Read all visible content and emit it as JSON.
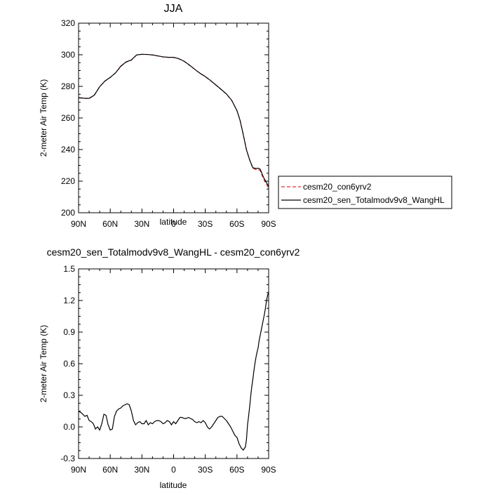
{
  "chart_data": [
    {
      "type": "line",
      "title": "JJA",
      "xlabel": "latitude",
      "ylabel": "2-meter Air Temp (K)",
      "xlim": [
        90,
        -90
      ],
      "ylim": [
        200,
        320
      ],
      "xticks": [
        90,
        60,
        30,
        0,
        -30,
        -60,
        -90
      ],
      "xtick_labels": [
        "90N",
        "60N",
        "30N",
        "0",
        "30S",
        "60S",
        "90S"
      ],
      "yticks": [
        200,
        220,
        240,
        260,
        280,
        300,
        320
      ],
      "ytick_labels": [
        "200",
        "220",
        "240",
        "260",
        "280",
        "300",
        "320"
      ],
      "legend_position": "right",
      "series": [
        {
          "name": "cesm20_con6yrv2",
          "color": "#e03030",
          "dash": true,
          "x": [
            90,
            85,
            80,
            75,
            70,
            65,
            60,
            55,
            50,
            45,
            40,
            35,
            30,
            25,
            20,
            15,
            10,
            5,
            0,
            -5,
            -10,
            -15,
            -20,
            -25,
            -30,
            -35,
            -40,
            -45,
            -50,
            -55,
            -60,
            -63,
            -66,
            -69,
            -72,
            -75,
            -78,
            -80,
            -82,
            -85,
            -88,
            -90
          ],
          "y": [
            272.7,
            272.4,
            272.3,
            274.5,
            279.8,
            283.3,
            285.6,
            288.5,
            292.6,
            295.3,
            296.6,
            299.9,
            300.3,
            300.2,
            299.9,
            299.2,
            298.6,
            298.4,
            298.3,
            297.4,
            295.8,
            293.4,
            290.8,
            288.3,
            286.1,
            283.6,
            280.9,
            278.0,
            275.1,
            271.1,
            264.7,
            258.4,
            249.5,
            240.0,
            233.5,
            228.1,
            227.3,
            227.5,
            226.6,
            221.5,
            218.0,
            215.4
          ]
        },
        {
          "name": "cesm20_sen_Totalmodv9v8_WangHL",
          "color": "#000000",
          "dash": false,
          "x": [
            90,
            85,
            80,
            75,
            70,
            65,
            60,
            55,
            50,
            45,
            40,
            35,
            30,
            25,
            20,
            15,
            10,
            5,
            0,
            -5,
            -10,
            -15,
            -20,
            -25,
            -30,
            -35,
            -40,
            -45,
            -50,
            -55,
            -60,
            -63,
            -66,
            -69,
            -72,
            -75,
            -78,
            -80,
            -82,
            -85,
            -88,
            -90
          ],
          "y": [
            272.9,
            272.5,
            272.4,
            274.5,
            279.8,
            283.4,
            285.7,
            288.5,
            292.8,
            295.5,
            296.7,
            299.9,
            300.3,
            300.2,
            299.9,
            299.3,
            298.7,
            298.4,
            298.4,
            297.5,
            295.9,
            293.5,
            290.8,
            288.3,
            286.2,
            283.7,
            280.9,
            278.1,
            275.2,
            271.2,
            264.6,
            258.3,
            249.3,
            239.8,
            233.5,
            228.5,
            228.0,
            228.2,
            227.6,
            222.6,
            219.0,
            216.7
          ]
        }
      ]
    },
    {
      "type": "line",
      "title": "cesm20_sen_Totalmodv9v8_WangHL - cesm20_con6yrv2",
      "xlabel": "latitude",
      "ylabel": "2-meter Air Temp (K)",
      "xlim": [
        90,
        -90
      ],
      "ylim": [
        -0.3,
        1.5
      ],
      "xticks": [
        90,
        60,
        30,
        0,
        -30,
        -60,
        -90
      ],
      "xtick_labels": [
        "90N",
        "60N",
        "30N",
        "0",
        "30S",
        "60S",
        "90S"
      ],
      "yticks": [
        -0.3,
        0.0,
        0.3,
        0.6,
        0.9,
        1.2,
        1.5
      ],
      "ytick_labels": [
        "-0.3",
        "0.0",
        "0.3",
        "0.6",
        "0.9",
        "1.2",
        "1.5"
      ],
      "series": [
        {
          "color": "#000000",
          "dash": false,
          "x": [
            90,
            87,
            84,
            82,
            80,
            78,
            76,
            74,
            72,
            70,
            68,
            66,
            64,
            62,
            60,
            58,
            56,
            54,
            52,
            50,
            48,
            46,
            44,
            42,
            40,
            38,
            36,
            34,
            32,
            30,
            28,
            26,
            24,
            22,
            20,
            18,
            16,
            14,
            12,
            10,
            8,
            6,
            4,
            2,
            0,
            -2,
            -4,
            -6,
            -8,
            -10,
            -12,
            -14,
            -16,
            -18,
            -20,
            -22,
            -24,
            -26,
            -28,
            -30,
            -32,
            -34,
            -36,
            -38,
            -40,
            -42,
            -44,
            -46,
            -48,
            -50,
            -52,
            -54,
            -56,
            -58,
            -60,
            -62,
            -64,
            -66,
            -68,
            -69,
            -70,
            -71,
            -72,
            -73,
            -74,
            -75,
            -76,
            -77,
            -78,
            -79,
            -80,
            -81,
            -82,
            -83,
            -84,
            -85,
            -86,
            -87,
            -88,
            -89,
            -90
          ],
          "y": [
            0.15,
            0.13,
            0.1,
            0.11,
            0.06,
            0.05,
            0.03,
            -0.02,
            0.0,
            -0.03,
            0.03,
            0.12,
            0.11,
            0.02,
            -0.03,
            -0.02,
            0.1,
            0.15,
            0.17,
            0.18,
            0.2,
            0.21,
            0.22,
            0.21,
            0.15,
            0.06,
            0.02,
            0.04,
            0.05,
            0.03,
            0.03,
            0.06,
            0.02,
            0.04,
            0.03,
            0.05,
            0.06,
            0.06,
            0.05,
            0.03,
            0.04,
            0.06,
            0.05,
            0.02,
            0.05,
            0.03,
            0.06,
            0.09,
            0.09,
            0.08,
            0.08,
            0.09,
            0.08,
            0.07,
            0.05,
            0.04,
            0.05,
            0.04,
            0.06,
            0.04,
            0.0,
            -0.02,
            0.0,
            0.03,
            0.06,
            0.09,
            0.1,
            0.1,
            0.08,
            0.06,
            0.03,
            0.0,
            -0.04,
            -0.08,
            -0.1,
            -0.16,
            -0.2,
            -0.22,
            -0.19,
            -0.12,
            0.02,
            0.1,
            0.19,
            0.29,
            0.38,
            0.45,
            0.53,
            0.6,
            0.66,
            0.71,
            0.75,
            0.82,
            0.87,
            0.92,
            0.97,
            1.02,
            1.07,
            1.13,
            1.2,
            1.25,
            1.28
          ]
        }
      ]
    }
  ]
}
